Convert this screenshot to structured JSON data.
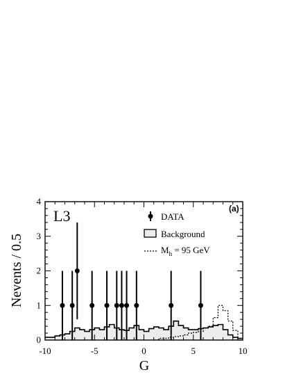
{
  "chart_data": {
    "type": "histogram",
    "experiment_label": "L3",
    "panel_label": "(a)",
    "xlabel": "G",
    "ylabel": "Nevents / 0.5",
    "xlim": [
      -10,
      10
    ],
    "ylim": [
      0,
      4
    ],
    "xticks": [
      -10,
      -5,
      0,
      5,
      10
    ],
    "yticks": [
      0,
      1,
      2,
      3,
      4
    ],
    "legend": {
      "placement": "top-right",
      "entries": [
        {
          "key": "data",
          "label": "DATA"
        },
        {
          "key": "background",
          "label": "Background"
        },
        {
          "key": "signal",
          "label_main": "M",
          "label_sub": "h",
          "label_rest": " = 95 GeV"
        }
      ]
    },
    "background": {
      "name": "Background",
      "bin_width": 0.5,
      "bins_start": -10,
      "values": [
        0.08,
        0.08,
        0.12,
        0.15,
        0.18,
        0.25,
        0.35,
        0.3,
        0.25,
        0.3,
        0.35,
        0.3,
        0.38,
        0.45,
        0.35,
        0.3,
        0.28,
        0.35,
        0.42,
        0.3,
        0.25,
        0.33,
        0.38,
        0.35,
        0.3,
        0.4,
        0.55,
        0.42,
        0.35,
        0.3,
        0.3,
        0.33,
        0.35,
        0.38,
        0.42,
        0.45,
        0.3,
        0.15,
        0.08,
        0.05
      ]
    },
    "signal": {
      "name": "M_h = 95 GeV",
      "bin_width": 0.5,
      "bins_start": -10,
      "values": [
        0,
        0,
        0,
        0,
        0,
        0,
        0,
        0,
        0,
        0,
        0,
        0,
        0,
        0,
        0,
        0,
        0,
        0,
        0,
        0,
        0,
        0,
        0,
        0.05,
        0.05,
        0.08,
        0.1,
        0.12,
        0.15,
        0.2,
        0.22,
        0.25,
        0.35,
        0.4,
        0.65,
        1.0,
        0.85,
        0.55,
        0.28,
        0.0
      ]
    },
    "data_points": {
      "name": "DATA",
      "points": [
        {
          "x": -8.25,
          "y": 1,
          "err_low": 1,
          "err_high": 1
        },
        {
          "x": -7.25,
          "y": 1,
          "err_low": 1,
          "err_high": 1
        },
        {
          "x": -6.75,
          "y": 2,
          "err_low": 1.4,
          "err_high": 1.4
        },
        {
          "x": -5.25,
          "y": 1,
          "err_low": 1,
          "err_high": 1
        },
        {
          "x": -3.75,
          "y": 1,
          "err_low": 1,
          "err_high": 1
        },
        {
          "x": -2.75,
          "y": 1,
          "err_low": 1,
          "err_high": 1
        },
        {
          "x": -2.25,
          "y": 1,
          "err_low": 1,
          "err_high": 1
        },
        {
          "x": -1.75,
          "y": 1,
          "err_low": 1,
          "err_high": 1
        },
        {
          "x": -0.75,
          "y": 1,
          "err_low": 1,
          "err_high": 1
        },
        {
          "x": 2.75,
          "y": 1,
          "err_low": 1,
          "err_high": 1
        },
        {
          "x": 5.75,
          "y": 1,
          "err_low": 1,
          "err_high": 1
        }
      ]
    }
  }
}
